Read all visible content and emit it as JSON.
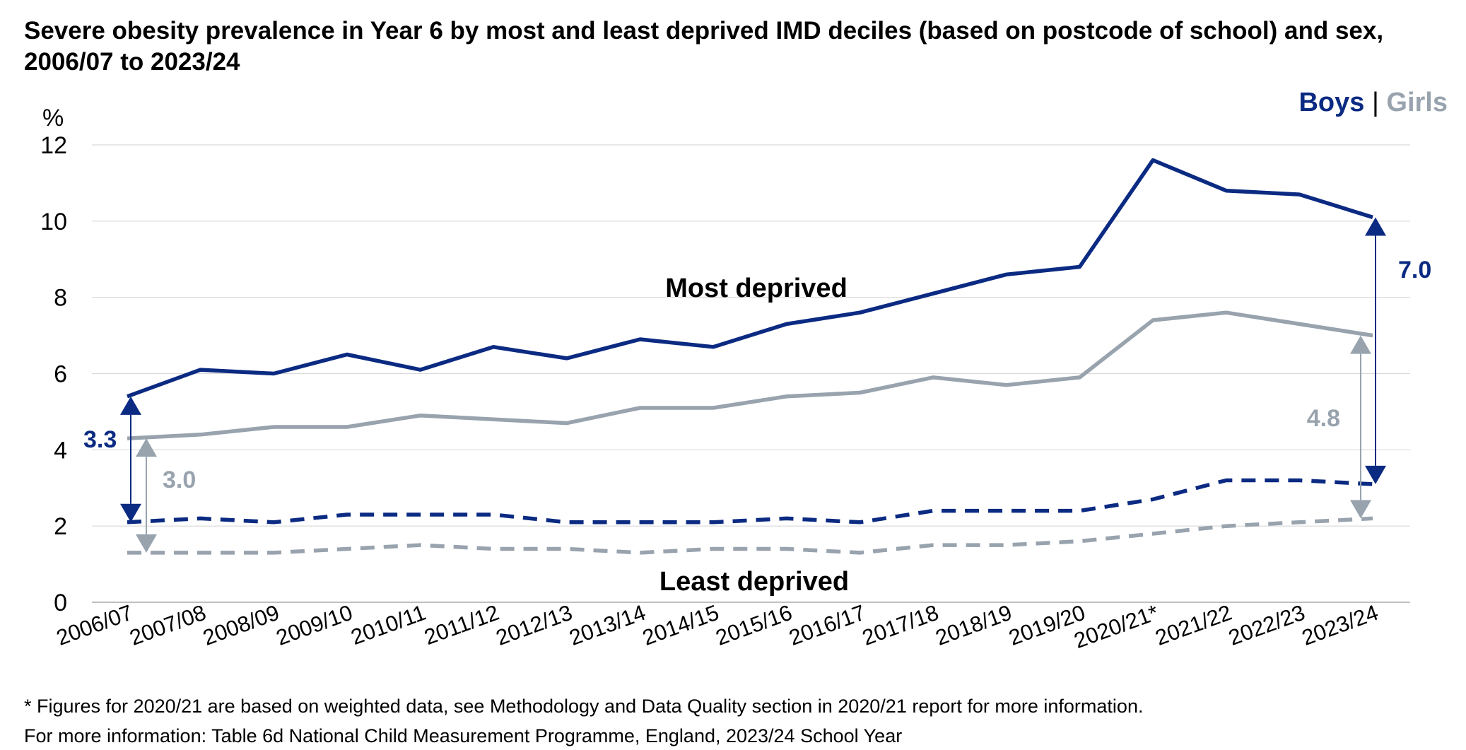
{
  "title": "Severe obesity prevalence in Year 6 by most and least deprived IMD deciles (based on postcode of school) and sex, 2006/07 to 2023/24",
  "legend": {
    "boys": "Boys",
    "separator": "|",
    "girls": "Girls"
  },
  "footnotes": [
    "* Figures for 2020/21 are based on weighted data, see Methodology and Data Quality section in 2020/21 report for more information.",
    "For more information: Table 6d National Child Measurement Programme, England, 2023/24 School Year"
  ],
  "colors": {
    "boys": "#0b2a82",
    "girls": "#98a3ae",
    "grid": "#d9d9d9",
    "axis": "#bfbfbf"
  },
  "chart_data": {
    "type": "line",
    "ylabel": "%",
    "ylim": [
      0,
      12
    ],
    "yticks": [
      0,
      2,
      4,
      6,
      8,
      10,
      12
    ],
    "grid": true,
    "legend_position": "top-right",
    "categories": [
      "2006/07",
      "2007/08",
      "2008/09",
      "2009/10",
      "2010/11",
      "2011/12",
      "2012/13",
      "2013/14",
      "2014/15",
      "2015/16",
      "2016/17",
      "2017/18",
      "2018/19",
      "2019/20",
      "2020/21*",
      "2021/22",
      "2022/23",
      "2023/24"
    ],
    "series": [
      {
        "name": "Boys",
        "group": "Most deprived",
        "style": "solid",
        "color": "#0b2a82",
        "values": [
          5.4,
          6.1,
          6.0,
          6.5,
          6.1,
          6.7,
          6.4,
          6.9,
          6.7,
          7.3,
          7.6,
          8.1,
          8.6,
          8.8,
          11.6,
          10.8,
          10.7,
          10.1
        ]
      },
      {
        "name": "Girls",
        "group": "Most deprived",
        "style": "solid",
        "color": "#98a3ae",
        "values": [
          4.3,
          4.4,
          4.6,
          4.6,
          4.9,
          4.8,
          4.7,
          5.1,
          5.1,
          5.4,
          5.5,
          5.9,
          5.7,
          5.9,
          7.4,
          7.6,
          7.3,
          7.0
        ]
      },
      {
        "name": "Boys",
        "group": "Least deprived",
        "style": "dashed",
        "color": "#0b2a82",
        "values": [
          2.1,
          2.2,
          2.1,
          2.3,
          2.3,
          2.3,
          2.1,
          2.1,
          2.1,
          2.2,
          2.1,
          2.4,
          2.4,
          2.4,
          2.7,
          3.2,
          3.2,
          3.1
        ]
      },
      {
        "name": "Girls",
        "group": "Least deprived",
        "style": "dashed",
        "color": "#98a3ae",
        "values": [
          1.3,
          1.3,
          1.3,
          1.4,
          1.5,
          1.4,
          1.4,
          1.3,
          1.4,
          1.4,
          1.3,
          1.5,
          1.5,
          1.6,
          1.8,
          2.0,
          2.1,
          2.2
        ]
      }
    ],
    "annotations": {
      "most_deprived": "Most deprived",
      "least_deprived": "Least deprived",
      "gaps": [
        {
          "text": "3.3",
          "category": "2006/07",
          "sex": "Boys",
          "from": 2.1,
          "to": 5.4
        },
        {
          "text": "3.0",
          "category": "2006/07",
          "sex": "Girls",
          "from": 1.3,
          "to": 4.3
        },
        {
          "text": "7.0",
          "category": "2023/24",
          "sex": "Boys",
          "from": 3.1,
          "to": 10.1
        },
        {
          "text": "4.8",
          "category": "2023/24",
          "sex": "Girls",
          "from": 2.2,
          "to": 7.0
        }
      ]
    }
  }
}
